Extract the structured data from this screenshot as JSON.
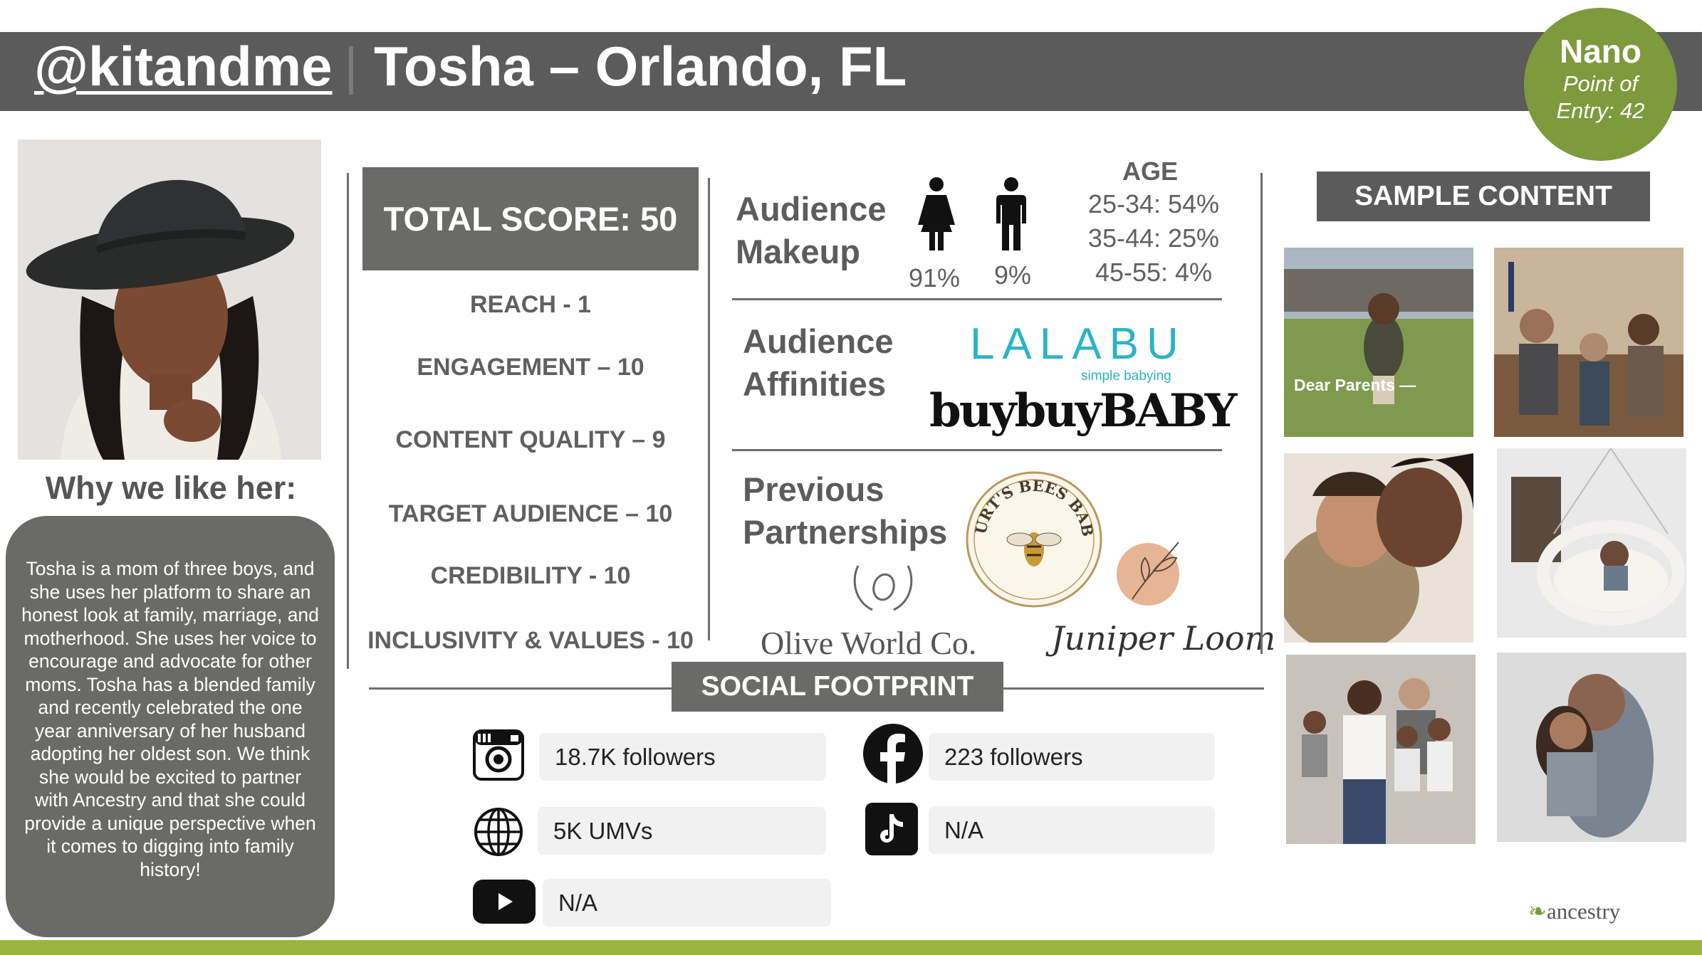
{
  "header": {
    "handle": "@kitandme",
    "name_location": "Tosha – Orlando, FL",
    "tier": {
      "title": "Nano",
      "line1": "Point of",
      "line2": "Entry: 42"
    }
  },
  "why": {
    "title": "Why we like her:",
    "text": "Tosha is a mom of three boys, and she uses her platform to share an honest look at family, marriage, and motherhood. She uses her voice to encourage and advocate for other moms. Tosha has a blended family and recently celebrated the one year anniversary of her husband adopting her oldest son. We think she would be excited to partner with Ancestry and that she could provide a unique perspective when it comes to digging into family history!"
  },
  "score": {
    "total": "TOTAL SCORE: 50",
    "items": [
      "REACH - 1",
      "ENGAGEMENT – 10",
      "CONTENT QUALITY – 9",
      "TARGET AUDIENCE – 10",
      "CREDIBILITY - 10",
      "INCLUSIVITY & VALUES - 10"
    ]
  },
  "audience": {
    "makeup_title_1": "Audience",
    "makeup_title_2": "Makeup",
    "female_pct": "91%",
    "male_pct": "9%",
    "age_title": "AGE",
    "age_rows": [
      "25-34: 54%",
      "35-44: 25%",
      "45-55: 4%"
    ],
    "affinities_title_1": "Audience",
    "affinities_title_2": "Affinities",
    "affinity_brands": {
      "lalabu": "LALABU",
      "lalabu_sub": "simple babying",
      "buybuy": "buybuyBABY"
    },
    "partnerships_title_1": "Previous",
    "partnerships_title_2": "Partnerships",
    "partners": {
      "burts": "BURT'S BEES BABY",
      "olive": "Olive World Co.",
      "juniper": "Juniper Loom"
    }
  },
  "social": {
    "title": "SOCIAL FOOTPRINT",
    "instagram": "18.7K followers",
    "facebook": "223 followers",
    "web": "5K UMVs",
    "tiktok": "N/A",
    "youtube": "N/A"
  },
  "sample": {
    "title": "SAMPLE CONTENT",
    "caption": "Dear Parents —"
  },
  "footer": {
    "brand": "ancestry"
  },
  "colors": {
    "header": "#5a5b5a",
    "accent_green": "#7d9a3c",
    "panel_gray": "#6a6a66",
    "footer_green": "#9bb541"
  }
}
